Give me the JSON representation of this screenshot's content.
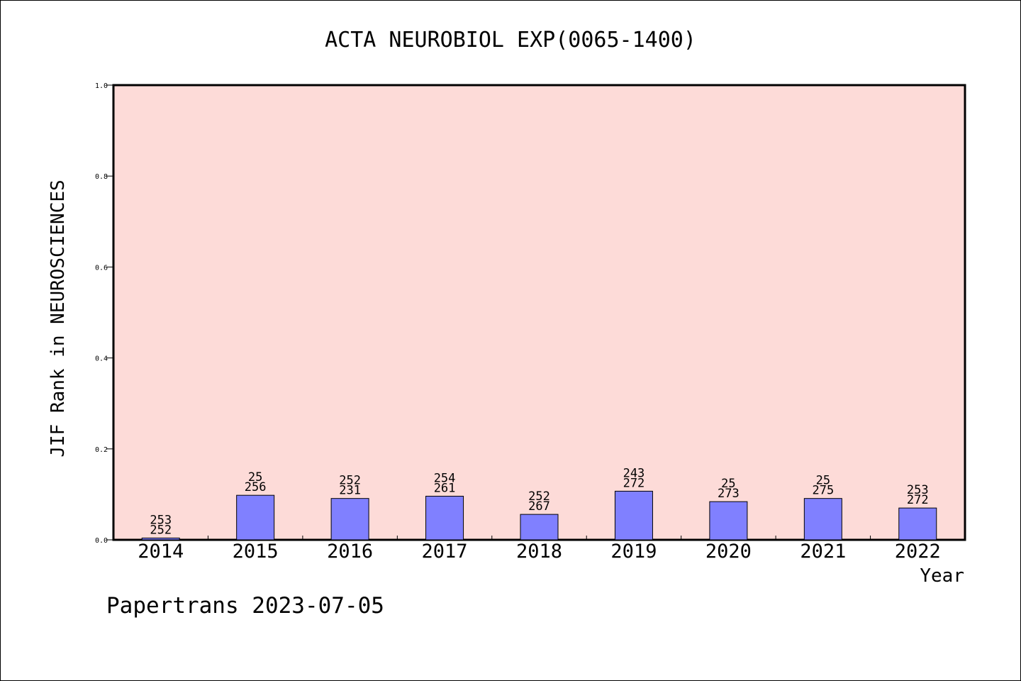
{
  "chart_data": {
    "type": "bar",
    "title": "ACTA NEUROBIOL EXP(0065-1400)",
    "xlabel": "Year",
    "ylabel": "JIF Rank in NEUROSCIENCES",
    "ylim": [
      0,
      1.0
    ],
    "yticks": [
      "0.0",
      "0.2",
      "0.4",
      "0.6",
      "0.8",
      "1.0"
    ],
    "categories": [
      "2014",
      "2015",
      "2016",
      "2017",
      "2018",
      "2019",
      "2020",
      "2021",
      "2022"
    ],
    "values": [
      0.004,
      0.098,
      0.091,
      0.096,
      0.056,
      0.107,
      0.084,
      0.091,
      0.07
    ],
    "rank_labels": [
      "253",
      "25",
      "252",
      "254",
      "252",
      "243",
      "25",
      "25",
      "253"
    ],
    "total_labels": [
      "252",
      "256",
      "231",
      "261",
      "267",
      "272",
      "273",
      "275",
      "272"
    ],
    "grid": false,
    "colors": {
      "plot_bg": "#fddbd8",
      "bar": "#8080ff",
      "axis": "#000000"
    }
  },
  "footer": {
    "credit": "Papertrans 2023-07-05"
  }
}
